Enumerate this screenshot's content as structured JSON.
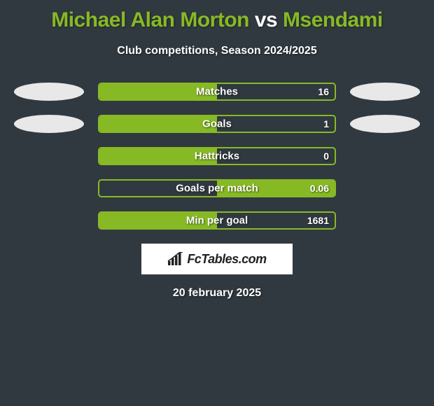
{
  "background_color": "#30393f",
  "accent_color": "#87b925",
  "text_color": "#ffffff",
  "oval_color": "#e8e8e8",
  "title": {
    "player1": "Michael Alan Morton",
    "vs": "vs",
    "player2": "Msendami",
    "fontsize": 30
  },
  "subtitle": "Club competitions, Season 2024/2025",
  "stats": [
    {
      "label": "Matches",
      "left_val": "",
      "right_val": "16",
      "left_fill_pct": 50,
      "right_fill_pct": 0,
      "show_left_oval": true,
      "show_right_oval": true
    },
    {
      "label": "Goals",
      "left_val": "",
      "right_val": "1",
      "left_fill_pct": 50,
      "right_fill_pct": 0,
      "show_left_oval": true,
      "show_right_oval": true
    },
    {
      "label": "Hattricks",
      "left_val": "",
      "right_val": "0",
      "left_fill_pct": 50,
      "right_fill_pct": 0,
      "show_left_oval": false,
      "show_right_oval": false
    },
    {
      "label": "Goals per match",
      "left_val": "",
      "right_val": "0.06",
      "left_fill_pct": 0,
      "right_fill_pct": 50,
      "show_left_oval": false,
      "show_right_oval": false
    },
    {
      "label": "Min per goal",
      "left_val": "",
      "right_val": "1681",
      "left_fill_pct": 50,
      "right_fill_pct": 0,
      "show_left_oval": false,
      "show_right_oval": false
    }
  ],
  "logo": {
    "text": "FcTables.com",
    "icon": "bar-chart-icon"
  },
  "date": "20 february 2025"
}
